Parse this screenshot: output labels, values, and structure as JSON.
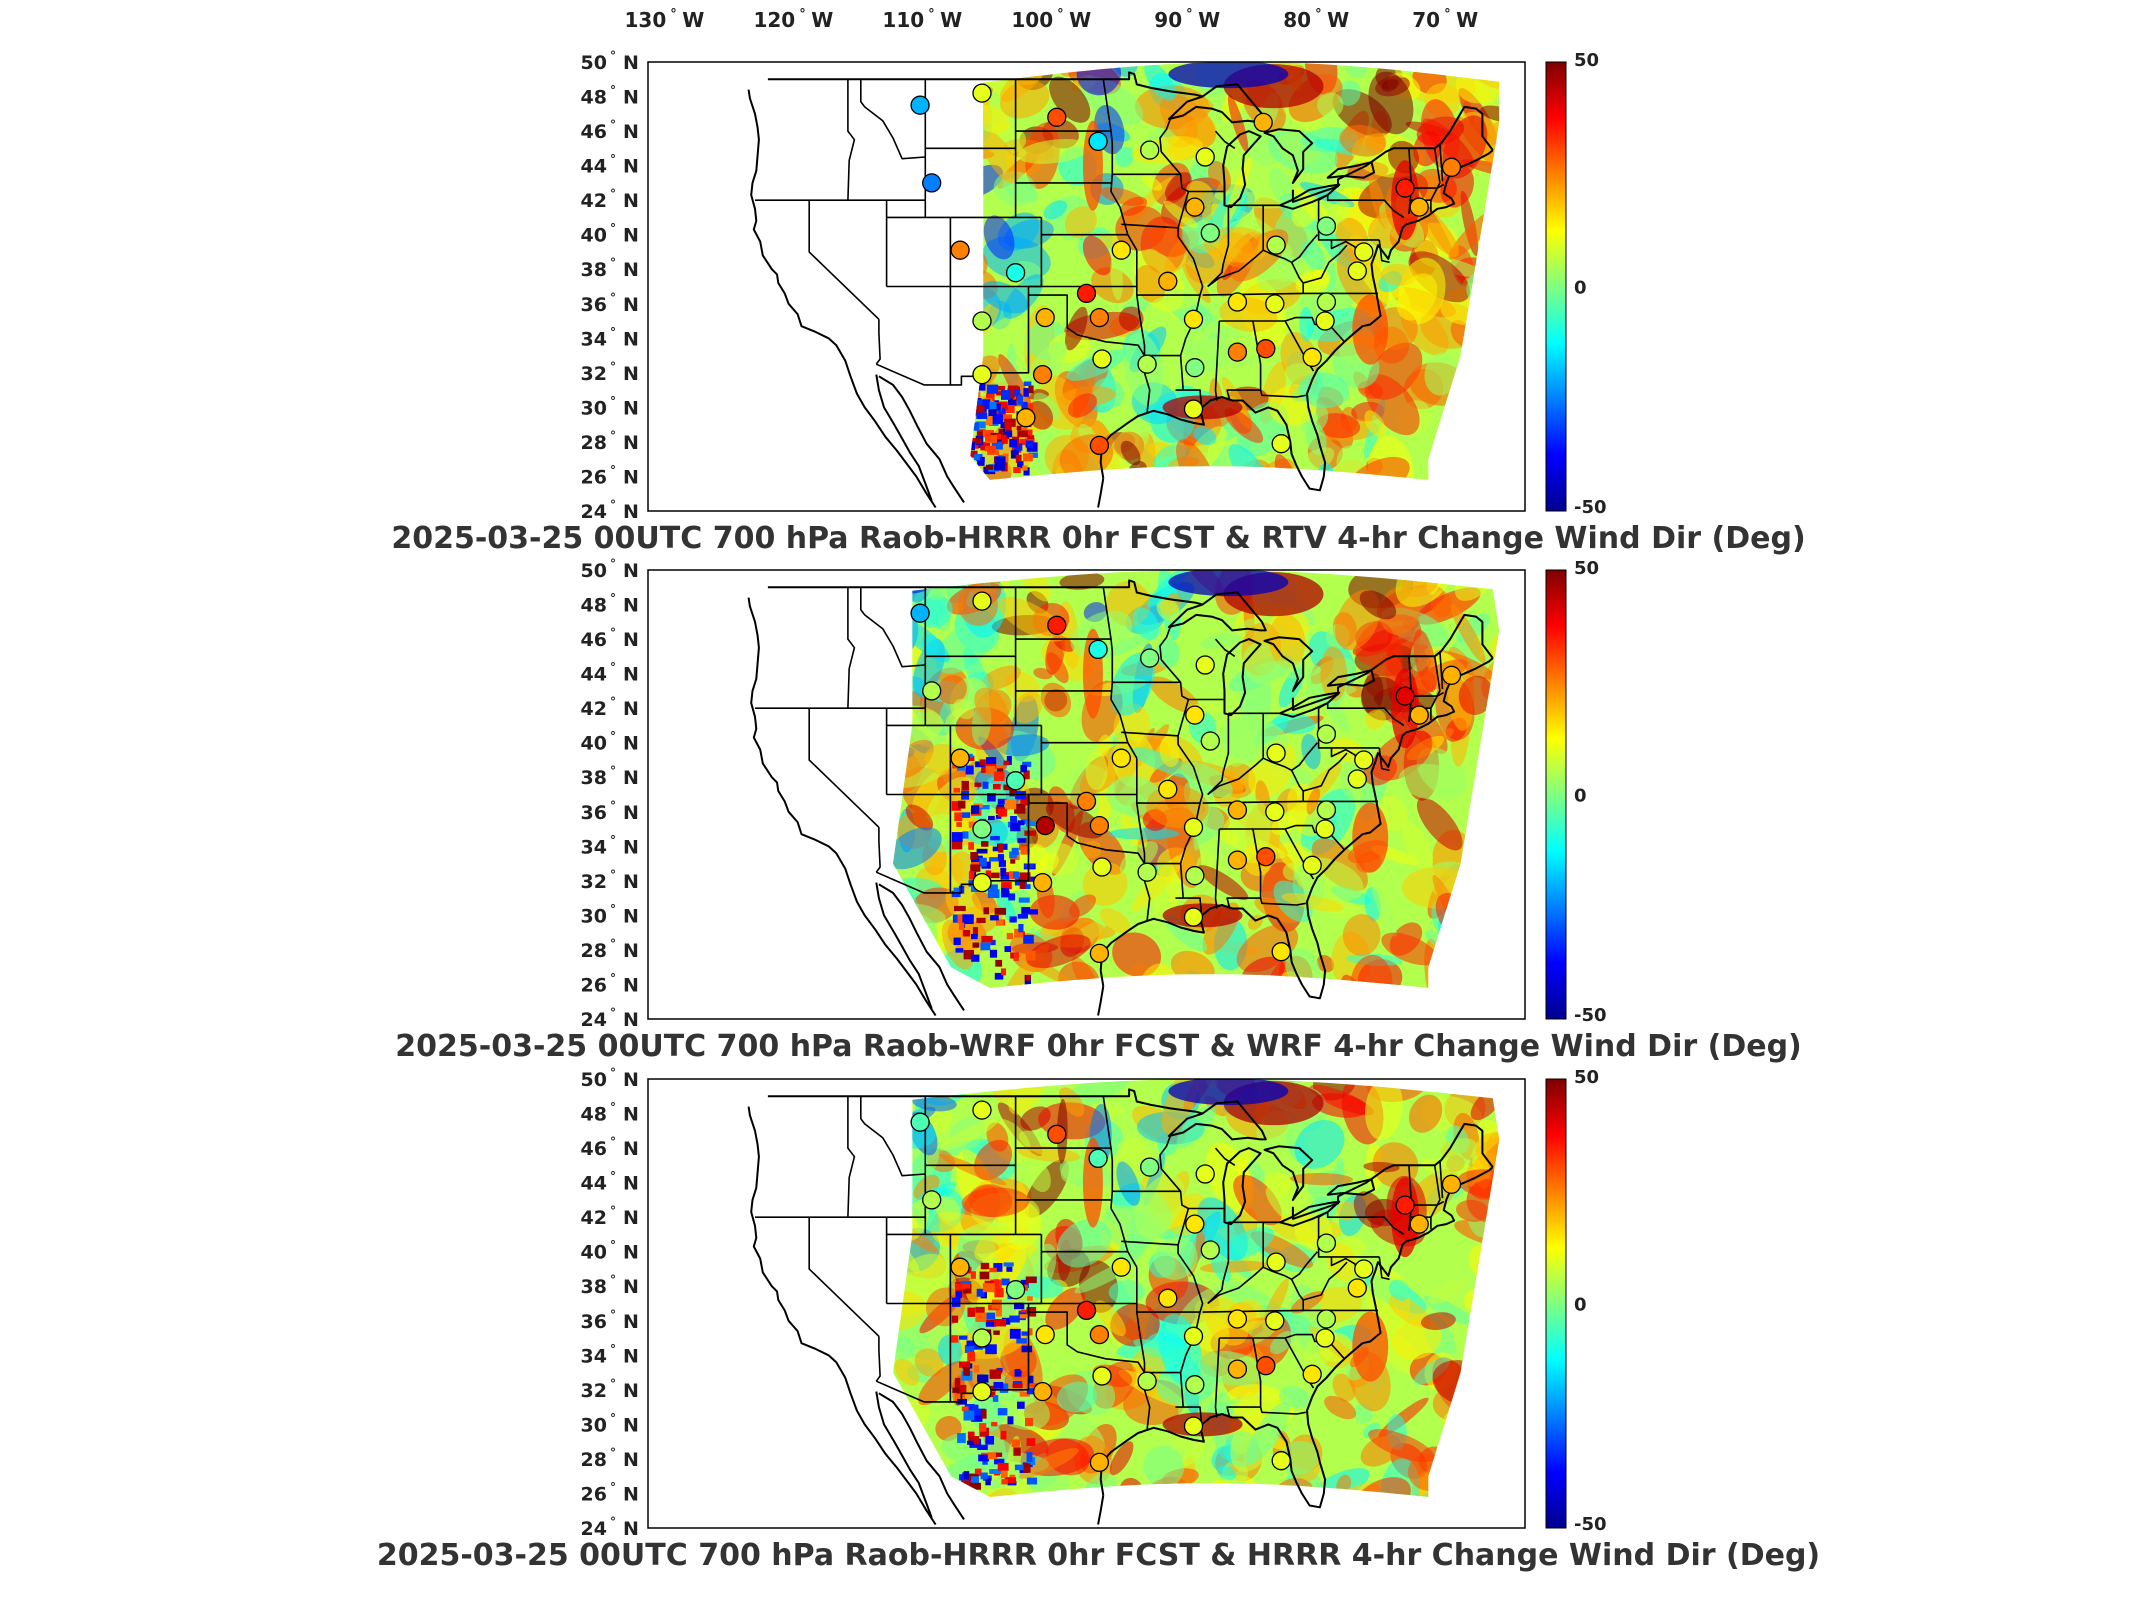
{
  "top_axis": {
    "lon_ticks": [
      {
        "value": -130,
        "text": "130",
        "hemi": "W"
      },
      {
        "value": -120,
        "text": "120",
        "hemi": "W"
      },
      {
        "value": -110,
        "text": "110",
        "hemi": "W"
      },
      {
        "value": -100,
        "text": "100",
        "hemi": "W"
      },
      {
        "value": -90,
        "text": "90",
        "hemi": "W"
      },
      {
        "value": -80,
        "text": "80",
        "hemi": "W"
      },
      {
        "value": -70,
        "text": "70",
        "hemi": "W"
      }
    ]
  },
  "lat_ticks": [
    {
      "value": 50,
      "text": "50",
      "hemi": "N"
    },
    {
      "value": 48,
      "text": "48",
      "hemi": "N"
    },
    {
      "value": 46,
      "text": "46",
      "hemi": "N"
    },
    {
      "value": 44,
      "text": "44",
      "hemi": "N"
    },
    {
      "value": 42,
      "text": "42",
      "hemi": "N"
    },
    {
      "value": 40,
      "text": "40",
      "hemi": "N"
    },
    {
      "value": 38,
      "text": "38",
      "hemi": "N"
    },
    {
      "value": 36,
      "text": "36",
      "hemi": "N"
    },
    {
      "value": 34,
      "text": "34",
      "hemi": "N"
    },
    {
      "value": 32,
      "text": "32",
      "hemi": "N"
    },
    {
      "value": 30,
      "text": "30",
      "hemi": "N"
    },
    {
      "value": 28,
      "text": "28",
      "hemi": "N"
    },
    {
      "value": 26,
      "text": "26",
      "hemi": "N"
    },
    {
      "value": 24,
      "text": "24",
      "hemi": "N"
    }
  ],
  "colorbar": {
    "min": -50,
    "max": 50,
    "labels": [
      "50",
      "0",
      "-50"
    ],
    "colors": [
      "#7f0000",
      "#ff0000",
      "#ff8000",
      "#ffff00",
      "#80ff80",
      "#00ffff",
      "#0080ff",
      "#0000ff",
      "#00008f"
    ]
  },
  "panels": [
    {
      "title": "2025-03-25 00UTC 700 hPa Raob-HRRR 0hr FCST & RTV 4-hr Change Wind Dir (Deg)",
      "domain": "rtv",
      "stations": [
        {
          "lon": -111.4,
          "lat": 47.5,
          "value": -20
        },
        {
          "lon": -106.6,
          "lat": 48.2,
          "value": 10
        },
        {
          "lon": -100.8,
          "lat": 46.8,
          "value": 30
        },
        {
          "lon": -97.6,
          "lat": 45.4,
          "value": -15
        },
        {
          "lon": -93.6,
          "lat": 44.9,
          "value": 5
        },
        {
          "lon": -89.3,
          "lat": 44.5,
          "value": 10
        },
        {
          "lon": -84.8,
          "lat": 46.5,
          "value": 20
        },
        {
          "lon": -110.5,
          "lat": 43.0,
          "value": -25
        },
        {
          "lon": -108.3,
          "lat": 39.1,
          "value": 25
        },
        {
          "lon": -104.0,
          "lat": 37.8,
          "value": -10
        },
        {
          "lon": -98.5,
          "lat": 36.6,
          "value": 35
        },
        {
          "lon": -97.5,
          "lat": 35.2,
          "value": 25
        },
        {
          "lon": -101.7,
          "lat": 35.2,
          "value": 20
        },
        {
          "lon": -106.6,
          "lat": 35.0,
          "value": 5
        },
        {
          "lon": -106.6,
          "lat": 31.9,
          "value": 10
        },
        {
          "lon": -101.9,
          "lat": 31.9,
          "value": 25
        },
        {
          "lon": -97.3,
          "lat": 32.8,
          "value": 10
        },
        {
          "lon": -93.8,
          "lat": 32.5,
          "value": 5
        },
        {
          "lon": -90.1,
          "lat": 32.3,
          "value": 0
        },
        {
          "lon": -86.8,
          "lat": 33.2,
          "value": 25
        },
        {
          "lon": -84.6,
          "lat": 33.4,
          "value": 30
        },
        {
          "lon": -81.0,
          "lat": 32.9,
          "value": 15
        },
        {
          "lon": -80.0,
          "lat": 35.0,
          "value": 10
        },
        {
          "lon": -86.8,
          "lat": 36.1,
          "value": 15
        },
        {
          "lon": -83.9,
          "lat": 36.0,
          "value": 10
        },
        {
          "lon": -79.9,
          "lat": 36.1,
          "value": 5
        },
        {
          "lon": -77.5,
          "lat": 37.9,
          "value": 10
        },
        {
          "lon": -79.9,
          "lat": 40.5,
          "value": 0
        },
        {
          "lon": -83.8,
          "lat": 39.4,
          "value": 5
        },
        {
          "lon": -88.9,
          "lat": 40.1,
          "value": 0
        },
        {
          "lon": -90.1,
          "lat": 41.6,
          "value": 20
        },
        {
          "lon": -95.8,
          "lat": 39.1,
          "value": 15
        },
        {
          "lon": -92.2,
          "lat": 37.3,
          "value": 20
        },
        {
          "lon": -90.2,
          "lat": 35.1,
          "value": 15
        },
        {
          "lon": -73.8,
          "lat": 42.7,
          "value": 35
        },
        {
          "lon": -72.7,
          "lat": 41.6,
          "value": 20
        },
        {
          "lon": -70.2,
          "lat": 43.9,
          "value": 25
        },
        {
          "lon": -97.5,
          "lat": 27.8,
          "value": 30
        },
        {
          "lon": -90.2,
          "lat": 29.9,
          "value": 10
        },
        {
          "lon": -83.4,
          "lat": 27.9,
          "value": 10
        },
        {
          "lon": -103.2,
          "lat": 29.4,
          "value": 20
        },
        {
          "lon": -77.0,
          "lat": 39.0,
          "value": 10
        }
      ]
    },
    {
      "title": "2025-03-25 00UTC 700 hPa Raob-WRF 0hr FCST & WRF 4-hr Change Wind Dir (Deg)",
      "domain": "full",
      "stations": [
        {
          "lon": -111.4,
          "lat": 47.5,
          "value": -20
        },
        {
          "lon": -106.6,
          "lat": 48.2,
          "value": 10
        },
        {
          "lon": -100.8,
          "lat": 46.8,
          "value": 35
        },
        {
          "lon": -97.6,
          "lat": 45.4,
          "value": -10
        },
        {
          "lon": -93.6,
          "lat": 44.9,
          "value": 0
        },
        {
          "lon": -89.3,
          "lat": 44.5,
          "value": 10
        },
        {
          "lon": -110.5,
          "lat": 43.0,
          "value": 5
        },
        {
          "lon": -108.3,
          "lat": 39.1,
          "value": 20
        },
        {
          "lon": -104.0,
          "lat": 37.8,
          "value": -5
        },
        {
          "lon": -101.7,
          "lat": 35.2,
          "value": 45
        },
        {
          "lon": -98.5,
          "lat": 36.6,
          "value": 25
        },
        {
          "lon": -97.5,
          "lat": 35.2,
          "value": 25
        },
        {
          "lon": -106.6,
          "lat": 35.0,
          "value": 0
        },
        {
          "lon": -106.6,
          "lat": 31.9,
          "value": 10
        },
        {
          "lon": -101.9,
          "lat": 31.9,
          "value": 20
        },
        {
          "lon": -97.3,
          "lat": 32.8,
          "value": 10
        },
        {
          "lon": -93.8,
          "lat": 32.5,
          "value": 5
        },
        {
          "lon": -90.1,
          "lat": 32.3,
          "value": 5
        },
        {
          "lon": -86.8,
          "lat": 33.2,
          "value": 20
        },
        {
          "lon": -84.6,
          "lat": 33.4,
          "value": 30
        },
        {
          "lon": -81.0,
          "lat": 32.9,
          "value": 10
        },
        {
          "lon": -80.0,
          "lat": 35.0,
          "value": 10
        },
        {
          "lon": -86.8,
          "lat": 36.1,
          "value": 20
        },
        {
          "lon": -83.9,
          "lat": 36.0,
          "value": 10
        },
        {
          "lon": -79.9,
          "lat": 36.1,
          "value": 5
        },
        {
          "lon": -77.5,
          "lat": 37.9,
          "value": 10
        },
        {
          "lon": -79.9,
          "lat": 40.5,
          "value": 5
        },
        {
          "lon": -83.8,
          "lat": 39.4,
          "value": 10
        },
        {
          "lon": -88.9,
          "lat": 40.1,
          "value": 5
        },
        {
          "lon": -90.1,
          "lat": 41.6,
          "value": 15
        },
        {
          "lon": -95.8,
          "lat": 39.1,
          "value": 15
        },
        {
          "lon": -92.2,
          "lat": 37.3,
          "value": 15
        },
        {
          "lon": -90.2,
          "lat": 35.1,
          "value": 10
        },
        {
          "lon": -73.8,
          "lat": 42.7,
          "value": 40
        },
        {
          "lon": -72.7,
          "lat": 41.6,
          "value": 20
        },
        {
          "lon": -70.2,
          "lat": 43.9,
          "value": 20
        },
        {
          "lon": -97.5,
          "lat": 27.8,
          "value": 20
        },
        {
          "lon": -90.2,
          "lat": 29.9,
          "value": 10
        },
        {
          "lon": -83.4,
          "lat": 27.9,
          "value": 15
        },
        {
          "lon": -77.0,
          "lat": 39.0,
          "value": 10
        }
      ]
    },
    {
      "title": "2025-03-25 00UTC 700 hPa Raob-HRRR 0hr FCST & HRRR 4-hr Change Wind Dir (Deg)",
      "domain": "full",
      "stations": [
        {
          "lon": -111.4,
          "lat": 47.5,
          "value": -5
        },
        {
          "lon": -106.6,
          "lat": 48.2,
          "value": 10
        },
        {
          "lon": -100.8,
          "lat": 46.8,
          "value": 30
        },
        {
          "lon": -97.6,
          "lat": 45.4,
          "value": -5
        },
        {
          "lon": -93.6,
          "lat": 44.9,
          "value": 0
        },
        {
          "lon": -89.3,
          "lat": 44.5,
          "value": 10
        },
        {
          "lon": -110.5,
          "lat": 43.0,
          "value": 5
        },
        {
          "lon": -108.3,
          "lat": 39.1,
          "value": 20
        },
        {
          "lon": -104.0,
          "lat": 37.8,
          "value": 0
        },
        {
          "lon": -98.5,
          "lat": 36.6,
          "value": 35
        },
        {
          "lon": -97.5,
          "lat": 35.2,
          "value": 25
        },
        {
          "lon": -101.7,
          "lat": 35.2,
          "value": 15
        },
        {
          "lon": -106.6,
          "lat": 35.0,
          "value": 5
        },
        {
          "lon": -106.6,
          "lat": 31.9,
          "value": 10
        },
        {
          "lon": -101.9,
          "lat": 31.9,
          "value": 20
        },
        {
          "lon": -97.3,
          "lat": 32.8,
          "value": 10
        },
        {
          "lon": -93.8,
          "lat": 32.5,
          "value": 5
        },
        {
          "lon": -90.1,
          "lat": 32.3,
          "value": 5
        },
        {
          "lon": -86.8,
          "lat": 33.2,
          "value": 20
        },
        {
          "lon": -84.6,
          "lat": 33.4,
          "value": 30
        },
        {
          "lon": -81.0,
          "lat": 32.9,
          "value": 15
        },
        {
          "lon": -80.0,
          "lat": 35.0,
          "value": 10
        },
        {
          "lon": -86.8,
          "lat": 36.1,
          "value": 15
        },
        {
          "lon": -83.9,
          "lat": 36.0,
          "value": 10
        },
        {
          "lon": -79.9,
          "lat": 36.1,
          "value": 5
        },
        {
          "lon": -77.5,
          "lat": 37.9,
          "value": 15
        },
        {
          "lon": -79.9,
          "lat": 40.5,
          "value": 5
        },
        {
          "lon": -83.8,
          "lat": 39.4,
          "value": 10
        },
        {
          "lon": -88.9,
          "lat": 40.1,
          "value": 5
        },
        {
          "lon": -90.1,
          "lat": 41.6,
          "value": 15
        },
        {
          "lon": -95.8,
          "lat": 39.1,
          "value": 15
        },
        {
          "lon": -92.2,
          "lat": 37.3,
          "value": 15
        },
        {
          "lon": -90.2,
          "lat": 35.1,
          "value": 10
        },
        {
          "lon": -73.8,
          "lat": 42.7,
          "value": 35
        },
        {
          "lon": -72.7,
          "lat": 41.6,
          "value": 20
        },
        {
          "lon": -70.2,
          "lat": 43.9,
          "value": 20
        },
        {
          "lon": -97.5,
          "lat": 27.8,
          "value": 20
        },
        {
          "lon": -90.2,
          "lat": 29.9,
          "value": 10
        },
        {
          "lon": -83.4,
          "lat": 27.9,
          "value": 10
        },
        {
          "lon": -77.0,
          "lat": 39.0,
          "value": 10
        }
      ]
    }
  ]
}
